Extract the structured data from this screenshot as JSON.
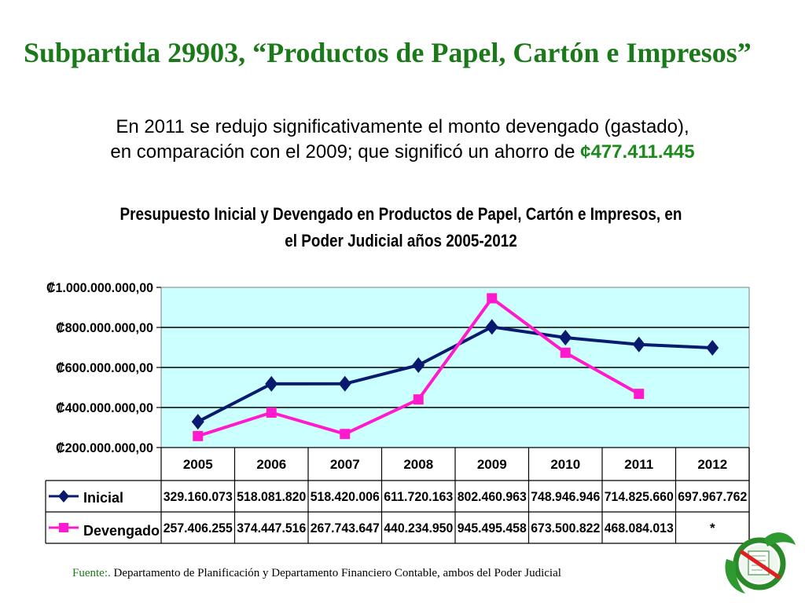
{
  "header": {
    "title": "Subpartida 29903, “Productos de Papel, Cartón e Impresos”",
    "summary_line1": "En  2011 se redujo significativamente el monto devengado (gastado),",
    "summary_line2": "en comparación con el 2009; que significó un ahorro de",
    "summary_amount": "¢477.411.445"
  },
  "chart_data": {
    "type": "line",
    "title_line1": "Presupuesto Inicial y Devengado en Productos de Papel, Cartón e Impresos, en",
    "title_line2": "el Poder Judicial años 2005-2012",
    "categories": [
      "2005",
      "2006",
      "2007",
      "2008",
      "2009",
      "2010",
      "2011",
      "2012"
    ],
    "ylim": [
      200000000,
      1000000000
    ],
    "y_ticks": [
      200000000,
      400000000,
      600000000,
      800000000,
      1000000000
    ],
    "y_tick_labels": [
      "₡200.000.000,00",
      "₡400.000.000,00",
      "₡600.000.000,00",
      "₡800.000.000,00",
      "₡1.000.000.000,00"
    ],
    "grid": true,
    "legend": "data-table",
    "series": [
      {
        "name": "Inicial",
        "color": "#0a1a6e",
        "marker": "diamond",
        "values": [
          329160073,
          518081820,
          518420006,
          611720163,
          802460963,
          748946946,
          714825660,
          697967762
        ],
        "table_labels": [
          "329.160.073",
          "518.081.820",
          "518.420.006",
          "611.720.163",
          "802.460.963",
          "748.946.946",
          "714.825.660",
          "697.967.762"
        ]
      },
      {
        "name": "Devengado",
        "color": "#ff1acd",
        "marker": "square",
        "values": [
          257406255,
          374447516,
          267743647,
          440234950,
          945495458,
          673500822,
          468084013,
          null
        ],
        "table_labels": [
          "257.406.255",
          "374.447.516",
          "267.743.647",
          "440.234.950",
          "945.495.458",
          "673.500.822",
          "468.084.013",
          "*"
        ]
      }
    ]
  },
  "footer": {
    "source_lead": "Fuente:.",
    "source_text": " Departamento de Planificación y Departamento Financiero Contable, ambos del Poder Judicial"
  },
  "colors": {
    "title": "#1a7a1a",
    "plot_background": "#ccffff",
    "accent_green": "#1a8a1a"
  },
  "logo": {
    "icon": "poder-judicial-logo-icon"
  }
}
